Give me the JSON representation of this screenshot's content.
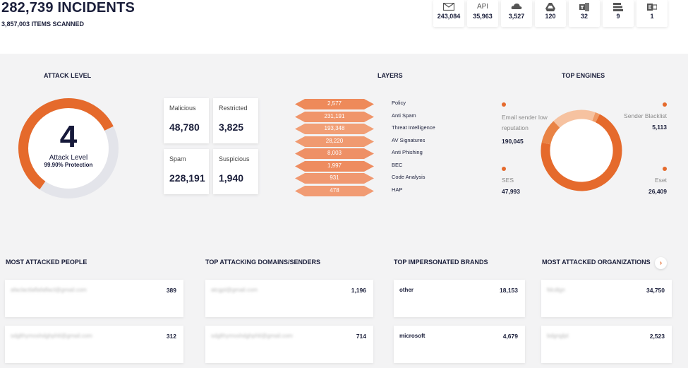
{
  "header": {
    "incidents_title": "282,739 INCIDENTS",
    "items_scanned": "3,857,003 ITEMS SCANNED"
  },
  "channels": [
    {
      "icon": "mail-icon",
      "label": "",
      "value": "243,084"
    },
    {
      "icon": "api-icon",
      "label": "API",
      "value": "35,963"
    },
    {
      "icon": "cloud-icon",
      "label": "",
      "value": "3,527"
    },
    {
      "icon": "drive-icon",
      "label": "",
      "value": "120"
    },
    {
      "icon": "teams-icon",
      "label": "",
      "value": "32"
    },
    {
      "icon": "stack-icon",
      "label": "",
      "value": "9"
    },
    {
      "icon": "exchange-icon",
      "label": "",
      "value": "1"
    }
  ],
  "attack_level": {
    "title": "ATTACK LEVEL",
    "level": "4",
    "label": "Attack Level",
    "protection": "99.90% Protection",
    "fraction": 0.58
  },
  "stats": [
    {
      "label": "Malicious",
      "value": "48,780"
    },
    {
      "label": "Restricted",
      "value": "3,825"
    },
    {
      "label": "Spam",
      "value": "228,191"
    },
    {
      "label": "Suspicious",
      "value": "1,940"
    }
  ],
  "layers": {
    "title": "LAYERS",
    "items": [
      {
        "value": "2,577",
        "name": "Policy"
      },
      {
        "value": "231,191",
        "name": "Anti Spam"
      },
      {
        "value": "193,348",
        "name": "Threat Intelligence"
      },
      {
        "value": "28,220",
        "name": "AV Signatures"
      },
      {
        "value": "8,003",
        "name": "Anti Phishing"
      },
      {
        "value": "1,997",
        "name": "BEC"
      },
      {
        "value": "931",
        "name": "Code Analysis"
      },
      {
        "value": "478",
        "name": "HAP"
      }
    ]
  },
  "top_engines": {
    "title": "TOP ENGINES",
    "items": [
      {
        "name": "Email sender low reputation",
        "value": "190,045"
      },
      {
        "name": "Sender Blacklist",
        "value": "5,113"
      },
      {
        "name": "SES",
        "value": "47,993"
      },
      {
        "name": "Eset",
        "value": "26,409"
      }
    ],
    "colors": [
      "#e56a2c",
      "#ef9a66",
      "#f6c2a0",
      "#e98345"
    ]
  },
  "lists": [
    {
      "title": "MOST ATTACKED PEOPLE",
      "rows": [
        {
          "key": "afaclactlaflafaflacl@gmail.com",
          "value": "389",
          "blurred": true
        },
        {
          "key": "sdglthymoshdghphtl@gmail.com",
          "value": "312",
          "blurred": true
        }
      ]
    },
    {
      "title": "TOP ATTACKING DOMAINS/SENDERS",
      "rows": [
        {
          "key": "atcgpl@gmail.com",
          "value": "1,196",
          "blurred": true
        },
        {
          "key": "sdglthymoshdghphtl@gmail.com",
          "value": "714",
          "blurred": true
        }
      ]
    },
    {
      "title": "TOP IMPERSONATED BRANDS",
      "rows": [
        {
          "key": "other",
          "value": "18,153",
          "blurred": false
        },
        {
          "key": "microsoft",
          "value": "4,679",
          "blurred": false
        }
      ]
    },
    {
      "title": "MOST ATTACKED ORGANIZATIONS",
      "rows": [
        {
          "key": "fdcdlgn",
          "value": "34,750",
          "blurred": true
        },
        {
          "key": "bdgnglpt",
          "value": "2,523",
          "blurred": true
        }
      ]
    }
  ],
  "next_arrow": "›",
  "accent_color": "#e56a2c"
}
